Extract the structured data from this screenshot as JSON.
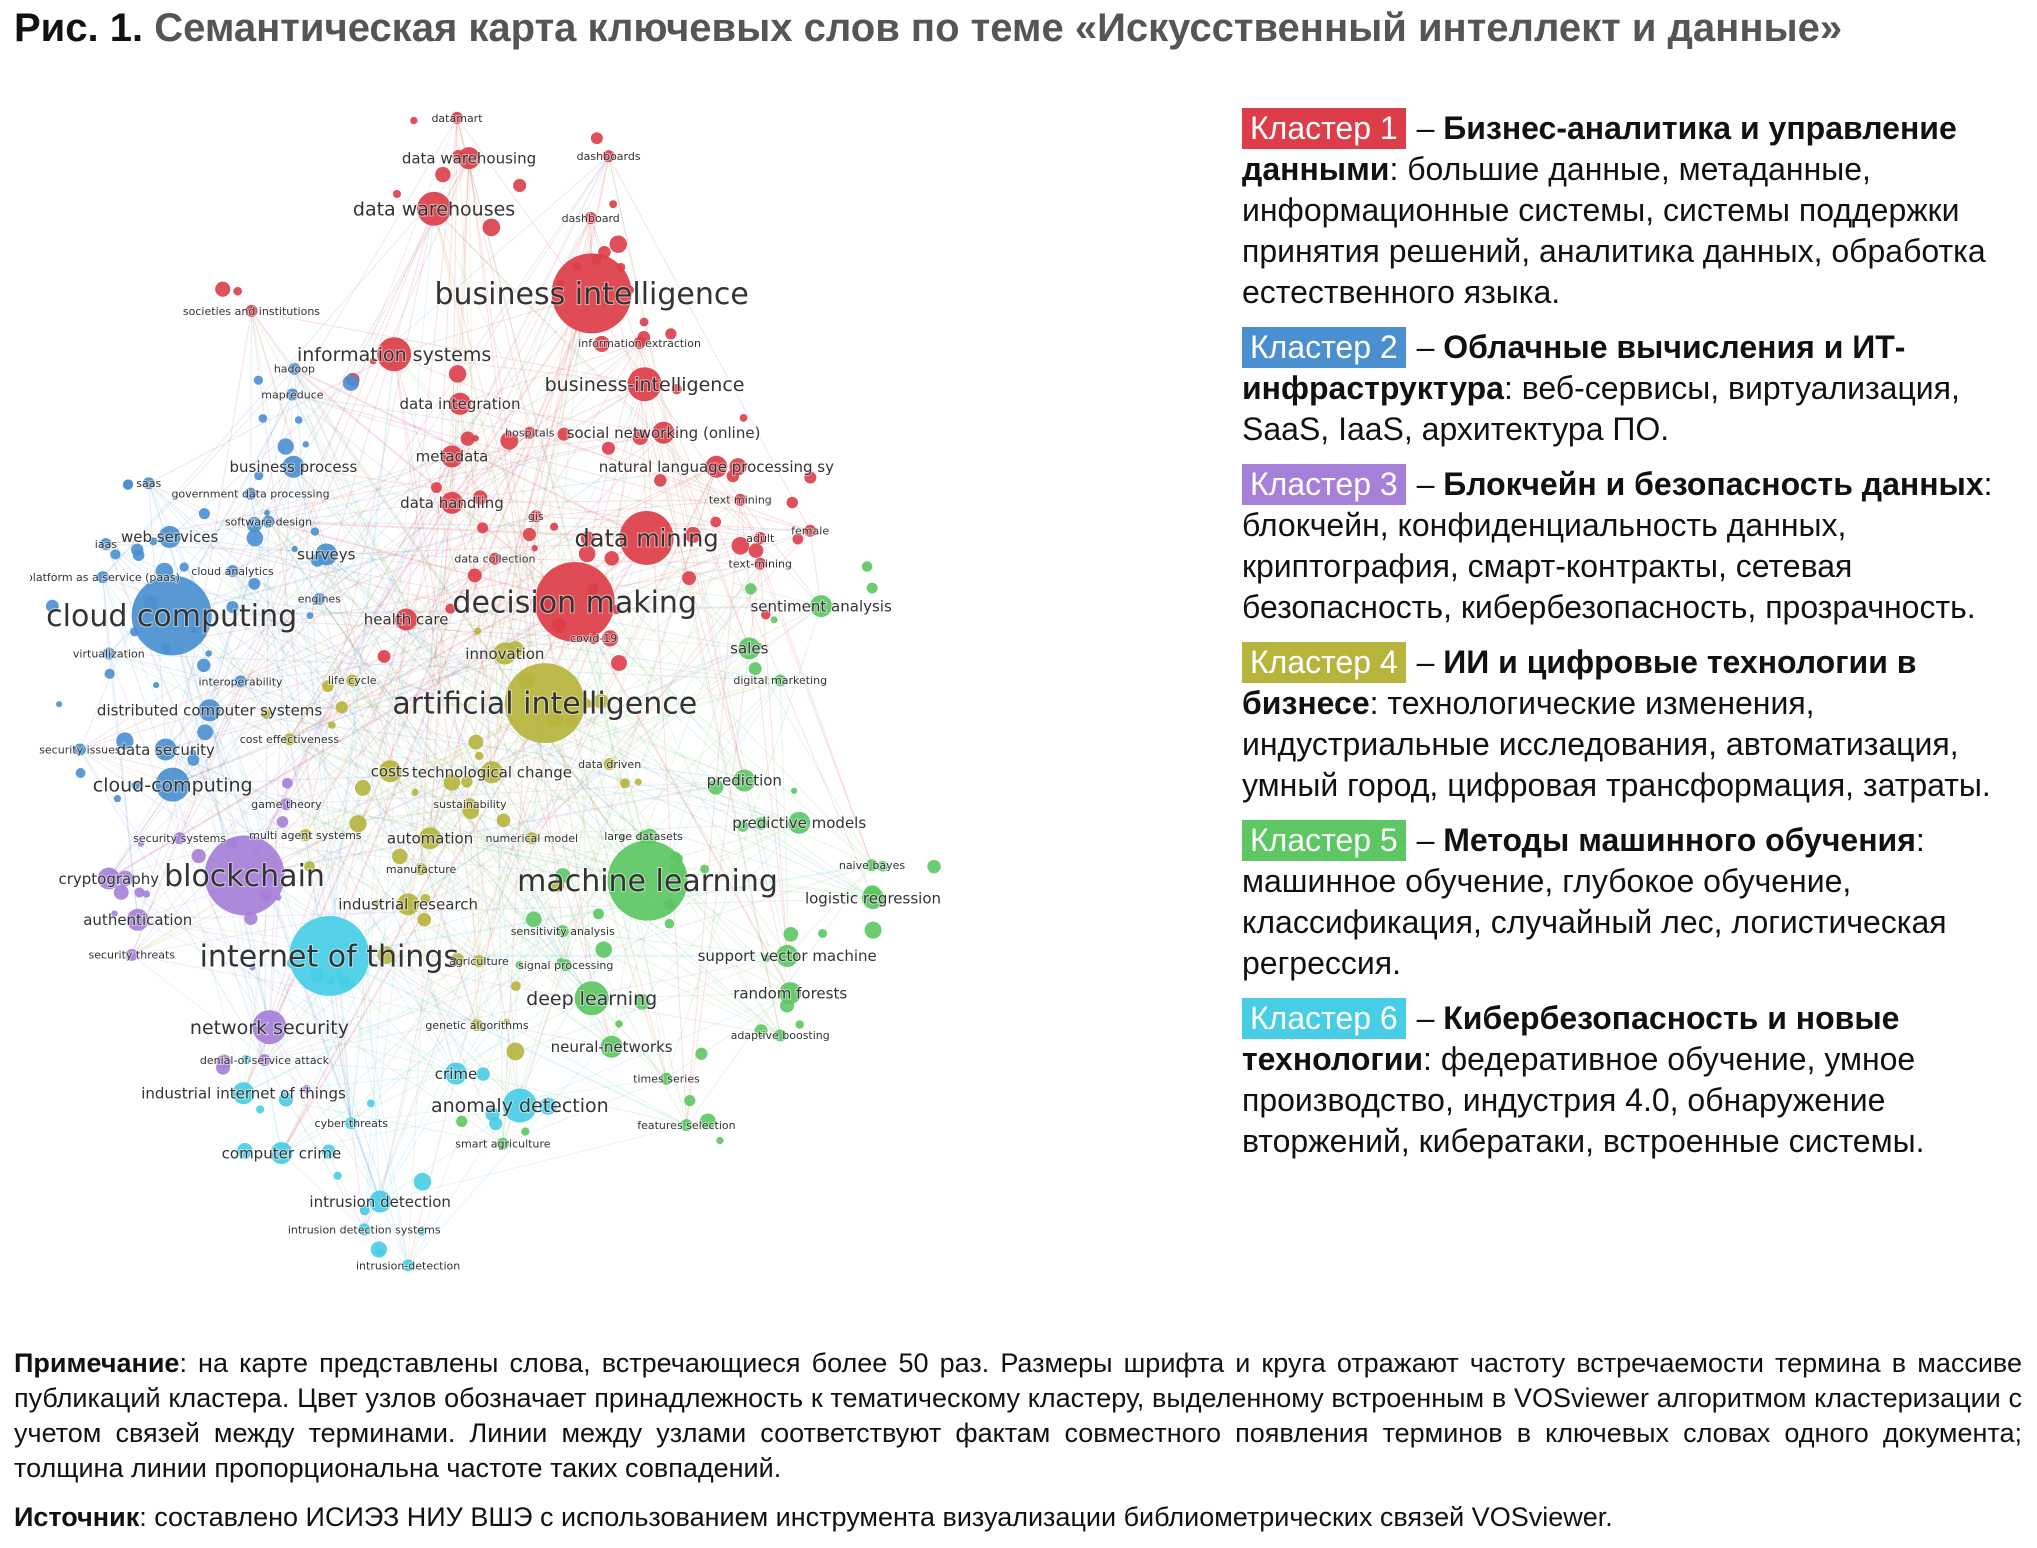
{
  "figure": {
    "label": "Рис. 1.",
    "title": "Семантическая карта ключевых слов по теме «Искусственный интеллект и данные»"
  },
  "colors": {
    "cluster_1": "#dd3d48",
    "cluster_2": "#4a8fd0",
    "cluster_3": "#a57fd8",
    "cluster_4": "#b6b43c",
    "cluster_5": "#5cc763",
    "cluster_6": "#47cde6"
  },
  "clusters": [
    {
      "badge": "Кластер 1",
      "color": "#dd3d48",
      "title": "Бизнес-аналитика и управление данными",
      "desc": ": большие данные, метаданные, информационные системы, системы поддержки принятия решений, аналитика данных, обработка естественного языка."
    },
    {
      "badge": "Кластер 2",
      "color": "#4a8fd0",
      "title": "Облачные вычисления и ИТ-инфраструктура",
      "desc": ": веб-сервисы, виртуализация, SaaS, IaaS, архитектура ПО."
    },
    {
      "badge": "Кластер 3",
      "color": "#a57fd8",
      "title": "Блокчейн и безопасность данных",
      "desc": ": блокчейн, конфиденциальность данных, криптография, смарт-контракты, сетевая безопасность, кибербезопасность, прозрачность."
    },
    {
      "badge": "Кластер 4",
      "color": "#b6b43c",
      "title": "ИИ и цифровые технологии в бизнесе",
      "desc": ": технологические изменения, индустриальные исследования, автоматизация, умный город, цифровая трансформация, затраты."
    },
    {
      "badge": "Кластер 5",
      "color": "#5cc763",
      "title": "Методы машинного обучения",
      "desc": ": машинное обучение, глубокое обучение, классификация, случайный лес, логистическая регрессия."
    },
    {
      "badge": "Кластер 6",
      "color": "#47cde6",
      "title": "Кибербезопасность и новые технологии",
      "desc": ": федеративное обучение, умное производство, индустрия 4.0, обнаружение вторжений, кибератаки, встроенные системы."
    }
  ],
  "note": {
    "label": "Примечание",
    "text": ": на карте представлены слова, встречающиеся более 50 раз. Размеры шрифта и круга отражают частоту встречаемости термина в массиве публикаций кластера. Цвет узлов обозначает принадлежность к тематическому кластеру, выделенному встроенным в VOSviewer алгоритмом кластеризации с учетом связей между терминами. Линии между узлами соответствуют фактам совместного появления терминов в ключевых словах одного документа; толщина линии пропорциональна частоте таких совпадений."
  },
  "source": {
    "label": "Источник",
    "text": ": составлено ИСИЭЗ НИУ ВШЭ с использованием инструмента визуализации библиометрических связей VOSviewer."
  },
  "map": {
    "terms": [
      {
        "label": "datamart",
        "cluster": 1,
        "weight": 1
      },
      {
        "label": "data warehousing",
        "cluster": 1,
        "weight": 2
      },
      {
        "label": "dashboards",
        "cluster": 1,
        "weight": 1
      },
      {
        "label": "data warehouses",
        "cluster": 1,
        "weight": 3
      },
      {
        "label": "dashboard",
        "cluster": 1,
        "weight": 1
      },
      {
        "label": "business intelligence",
        "cluster": 1,
        "weight": 5
      },
      {
        "label": "societies and institutions",
        "cluster": 1,
        "weight": 1
      },
      {
        "label": "information systems",
        "cluster": 1,
        "weight": 3
      },
      {
        "label": "information extraction",
        "cluster": 1,
        "weight": 1
      },
      {
        "label": "hadoop",
        "cluster": 2,
        "weight": 1
      },
      {
        "label": "mapreduce",
        "cluster": 2,
        "weight": 1
      },
      {
        "label": "business-intelligence",
        "cluster": 1,
        "weight": 3
      },
      {
        "label": "data integration",
        "cluster": 1,
        "weight": 2
      },
      {
        "label": "hospitals",
        "cluster": 1,
        "weight": 1
      },
      {
        "label": "social networking (online)",
        "cluster": 1,
        "weight": 2
      },
      {
        "label": "metadata",
        "cluster": 1,
        "weight": 2
      },
      {
        "label": "business process",
        "cluster": 2,
        "weight": 2
      },
      {
        "label": "natural language processing sy",
        "cluster": 1,
        "weight": 2
      },
      {
        "label": "saas",
        "cluster": 2,
        "weight": 1
      },
      {
        "label": "government data processing",
        "cluster": 2,
        "weight": 1
      },
      {
        "label": "data handling",
        "cluster": 1,
        "weight": 2
      },
      {
        "label": "text mining",
        "cluster": 1,
        "weight": 1
      },
      {
        "label": "software design",
        "cluster": 2,
        "weight": 1
      },
      {
        "label": "gis",
        "cluster": 1,
        "weight": 1
      },
      {
        "label": "web services",
        "cluster": 2,
        "weight": 2
      },
      {
        "label": "data mining",
        "cluster": 1,
        "weight": 4
      },
      {
        "label": "adult",
        "cluster": 1,
        "weight": 1
      },
      {
        "label": "female",
        "cluster": 1,
        "weight": 1
      },
      {
        "label": "iaas",
        "cluster": 2,
        "weight": 1
      },
      {
        "label": "surveys",
        "cluster": 2,
        "weight": 2
      },
      {
        "label": "data collection",
        "cluster": 1,
        "weight": 1
      },
      {
        "label": "text-mining",
        "cluster": 1,
        "weight": 1
      },
      {
        "label": "platform as a service (paas)",
        "cluster": 2,
        "weight": 1
      },
      {
        "label": "cloud analytics",
        "cluster": 2,
        "weight": 1
      },
      {
        "label": "engines",
        "cluster": 2,
        "weight": 1
      },
      {
        "label": "decision making",
        "cluster": 1,
        "weight": 5
      },
      {
        "label": "sentiment analysis",
        "cluster": 5,
        "weight": 2
      },
      {
        "label": "cloud computing",
        "cluster": 2,
        "weight": 5
      },
      {
        "label": "health care",
        "cluster": 1,
        "weight": 2
      },
      {
        "label": "covid-19",
        "cluster": 1,
        "weight": 1
      },
      {
        "label": "innovation",
        "cluster": 4,
        "weight": 2
      },
      {
        "label": "sales",
        "cluster": 5,
        "weight": 2
      },
      {
        "label": "virtualization",
        "cluster": 2,
        "weight": 1
      },
      {
        "label": "interoperability",
        "cluster": 2,
        "weight": 1
      },
      {
        "label": "life cycle",
        "cluster": 4,
        "weight": 1
      },
      {
        "label": "digital marketing",
        "cluster": 5,
        "weight": 1
      },
      {
        "label": "artificial intelligence",
        "cluster": 4,
        "weight": 5
      },
      {
        "label": "distributed computer systems",
        "cluster": 2,
        "weight": 2
      },
      {
        "label": "cost effectiveness",
        "cluster": 4,
        "weight": 1
      },
      {
        "label": "security issues",
        "cluster": 2,
        "weight": 1
      },
      {
        "label": "data security",
        "cluster": 2,
        "weight": 2
      },
      {
        "label": "data driven",
        "cluster": 4,
        "weight": 1
      },
      {
        "label": "costs",
        "cluster": 4,
        "weight": 2
      },
      {
        "label": "technological change",
        "cluster": 4,
        "weight": 2
      },
      {
        "label": "prediction",
        "cluster": 5,
        "weight": 2
      },
      {
        "label": "cloud-computing",
        "cluster": 2,
        "weight": 3
      },
      {
        "label": "sustainability",
        "cluster": 4,
        "weight": 1
      },
      {
        "label": "game theory",
        "cluster": 3,
        "weight": 1
      },
      {
        "label": "predictive models",
        "cluster": 5,
        "weight": 2
      },
      {
        "label": "security systems",
        "cluster": 3,
        "weight": 1
      },
      {
        "label": "multi agent systems",
        "cluster": 4,
        "weight": 1
      },
      {
        "label": "automation",
        "cluster": 4,
        "weight": 2
      },
      {
        "label": "numerical model",
        "cluster": 4,
        "weight": 1
      },
      {
        "label": "large datasets",
        "cluster": 5,
        "weight": 1
      },
      {
        "label": "naive bayes",
        "cluster": 5,
        "weight": 1
      },
      {
        "label": "manufacture",
        "cluster": 4,
        "weight": 1
      },
      {
        "label": "cryptography",
        "cluster": 3,
        "weight": 2
      },
      {
        "label": "blockchain",
        "cluster": 3,
        "weight": 5
      },
      {
        "label": "machine learning",
        "cluster": 5,
        "weight": 5
      },
      {
        "label": "logistic regression",
        "cluster": 5,
        "weight": 2
      },
      {
        "label": "industrial research",
        "cluster": 4,
        "weight": 2
      },
      {
        "label": "authentication",
        "cluster": 3,
        "weight": 2
      },
      {
        "label": "sensitivity analysis",
        "cluster": 5,
        "weight": 1
      },
      {
        "label": "security threats",
        "cluster": 3,
        "weight": 1
      },
      {
        "label": "internet of things",
        "cluster": 6,
        "weight": 5
      },
      {
        "label": "agriculture",
        "cluster": 4,
        "weight": 1
      },
      {
        "label": "signal processing",
        "cluster": 5,
        "weight": 1
      },
      {
        "label": "support vector machine",
        "cluster": 5,
        "weight": 2
      },
      {
        "label": "deep learning",
        "cluster": 5,
        "weight": 3
      },
      {
        "label": "random forests",
        "cluster": 5,
        "weight": 2
      },
      {
        "label": "network security",
        "cluster": 3,
        "weight": 3
      },
      {
        "label": "genetic algorithms",
        "cluster": 4,
        "weight": 1
      },
      {
        "label": "adaptive boosting",
        "cluster": 5,
        "weight": 1
      },
      {
        "label": "neural-networks",
        "cluster": 5,
        "weight": 2
      },
      {
        "label": "denial-of-service attack",
        "cluster": 3,
        "weight": 1
      },
      {
        "label": "crime",
        "cluster": 6,
        "weight": 2
      },
      {
        "label": "times series",
        "cluster": 5,
        "weight": 1
      },
      {
        "label": "industrial internet of things",
        "cluster": 6,
        "weight": 2
      },
      {
        "label": "anomaly detection",
        "cluster": 6,
        "weight": 3
      },
      {
        "label": "cyber threats",
        "cluster": 6,
        "weight": 1
      },
      {
        "label": "features selection",
        "cluster": 5,
        "weight": 1
      },
      {
        "label": "smart agriculture",
        "cluster": 5,
        "weight": 1
      },
      {
        "label": "computer crime",
        "cluster": 6,
        "weight": 2
      },
      {
        "label": "intrusion detection",
        "cluster": 6,
        "weight": 2
      },
      {
        "label": "intrusion detection systems",
        "cluster": 6,
        "weight": 1
      },
      {
        "label": "intrusion-detection",
        "cluster": 6,
        "weight": 1
      }
    ]
  }
}
